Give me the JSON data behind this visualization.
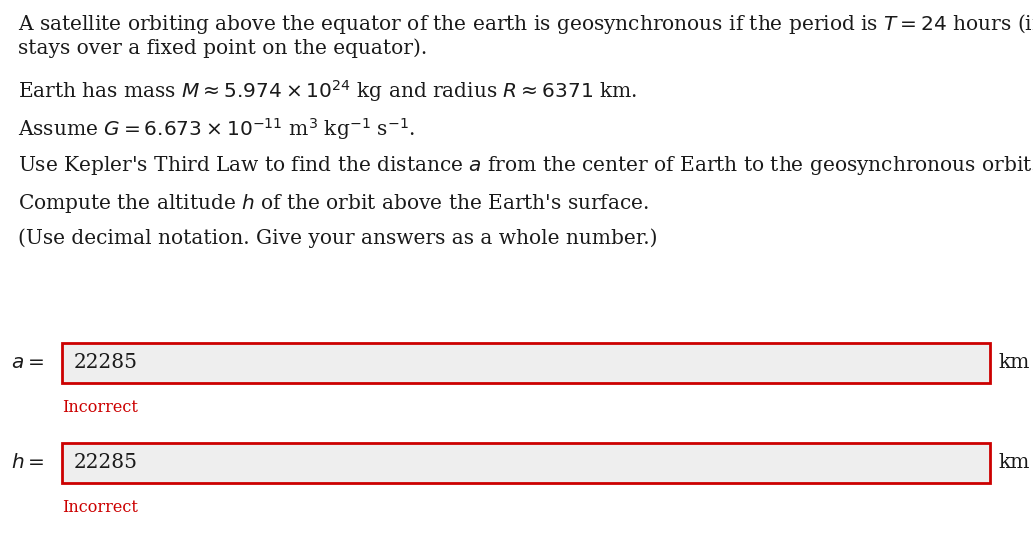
{
  "bg_color": "#ffffff",
  "text_color": "#1a1a1a",
  "red_color": "#cc0000",
  "input_bg": "#eeeeee",
  "input_border": "#cc0000",
  "line1": "A satellite orbiting above the equator of the earth is geosynchronous if the period is $T = 24$ hours (in this case, the satellite",
  "line2": "stays over a fixed point on the equator).",
  "line3": "Earth has mass $M \\approx 5.974 \\times 10^{24}$ kg and radius $R \\approx 6371$ km.",
  "line4": "Assume $G = 6.673 \\times 10^{-11}$ m$^3$ kg$^{-1}$ s$^{-1}$.",
  "line5": "Use Kepler's Third Law to find the distance $a$ from the center of Earth to the geosynchronous orbit.",
  "line6": "Compute the altitude $h$ of the orbit above the Earth's surface.",
  "line7": "(Use decimal notation. Give your answers as a whole number.)",
  "value_a": "22285",
  "value_h": "22285",
  "unit": "km",
  "incorrect_text": "Incorrect",
  "font_size_main": 14.5,
  "font_size_incorrect": 11.5
}
